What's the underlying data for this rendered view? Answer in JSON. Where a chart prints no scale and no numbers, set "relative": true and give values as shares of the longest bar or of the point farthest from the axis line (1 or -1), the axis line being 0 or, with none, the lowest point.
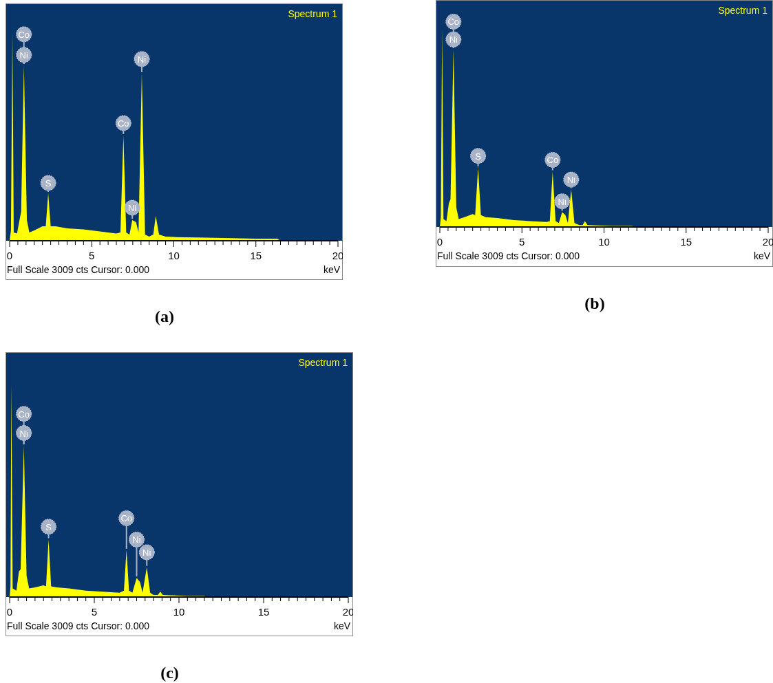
{
  "chart_data": [
    {
      "type": "area",
      "title": "Spectrum 1",
      "xlabel": "keV",
      "relative": true,
      "color": "#ffff00",
      "xlim": [
        0,
        20
      ],
      "xticks": [
        0,
        {
          "value": 0.5,
          "label": null
        },
        {
          "value": 1,
          "label": null
        },
        {
          "value": 1.5,
          "label": null
        },
        {
          "value": 2,
          "label": null
        },
        {
          "value": 2.5,
          "label": null
        },
        {
          "value": 3,
          "label": null
        },
        {
          "value": 3.5,
          "label": null
        },
        {
          "value": 4,
          "label": null
        },
        {
          "value": 4.5,
          "label": null
        },
        5,
        {
          "value": 5.5,
          "label": null
        },
        {
          "value": 6,
          "label": null
        },
        {
          "value": 6.5,
          "label": null
        },
        {
          "value": 7,
          "label": null
        },
        {
          "value": 7.5,
          "label": null
        },
        {
          "value": 8,
          "label": null
        },
        {
          "value": 8.5,
          "label": null
        },
        {
          "value": 9,
          "label": null
        },
        {
          "value": 9.5,
          "label": null
        },
        10,
        {
          "value": 10.5,
          "label": null
        },
        {
          "value": 11,
          "label": null
        },
        {
          "value": 11.5,
          "label": null
        },
        {
          "value": 12,
          "label": null
        },
        {
          "value": 12.5,
          "label": null
        },
        {
          "value": 13,
          "label": null
        },
        {
          "value": 13.5,
          "label": null
        },
        {
          "value": 14,
          "label": null
        },
        {
          "value": 14.5,
          "label": null
        },
        15,
        {
          "value": 15.5,
          "label": null
        },
        {
          "value": 16,
          "label": null
        },
        {
          "value": 16.5,
          "label": null
        },
        {
          "value": 17,
          "label": null
        },
        {
          "value": 17.5,
          "label": null
        },
        {
          "value": 18,
          "label": null
        },
        {
          "value": 18.5,
          "label": null
        },
        {
          "value": 19,
          "label": null
        },
        {
          "value": 19.5,
          "label": null
        },
        20
      ],
      "x": [
        0,
        0.08,
        0.17,
        0.25,
        0.45,
        0.6,
        0.7,
        0.87,
        1.05,
        1.2,
        1.5,
        2.0,
        2.2,
        2.35,
        2.5,
        2.8,
        3.5,
        4.5,
        5.5,
        6.5,
        6.75,
        6.93,
        7.1,
        7.3,
        7.47,
        7.7,
        7.85,
        8.05,
        8.25,
        8.5,
        8.75,
        8.9,
        9.1,
        9.5,
        10,
        12,
        14,
        15,
        16.3,
        16.5,
        20
      ],
      "values": [
        0,
        0.05,
        1,
        0.04,
        0.035,
        0.1,
        0.14,
        0.85,
        0.1,
        0.04,
        0.05,
        0.07,
        0.07,
        0.23,
        0.07,
        0.07,
        0.06,
        0.055,
        0.045,
        0.035,
        0.04,
        0.51,
        0.04,
        0.03,
        0.1,
        0.09,
        0.04,
        0.81,
        0.03,
        0.02,
        0.03,
        0.12,
        0.03,
        0.02,
        0.018,
        0.015,
        0.012,
        0.01,
        0.01,
        0,
        0
      ],
      "annotations": [
        "Full Scale 3009 cts Cursor: 0.000",
        "(a)",
        {
          "text": "Co",
          "x": 0.87,
          "y": 1.0
        },
        {
          "text": "Ni",
          "x": 0.87,
          "y": 0.9
        },
        {
          "text": "S",
          "x": 2.35,
          "y": 0.28
        },
        {
          "text": "Co",
          "x": 6.93,
          "y": 0.57
        },
        {
          "text": "Ni",
          "x": 7.47,
          "y": 0.16
        },
        {
          "text": "Ni",
          "x": 8.05,
          "y": 0.88
        }
      ]
    },
    {
      "type": "area",
      "title": "Spectrum 1",
      "xlabel": "keV",
      "relative": true,
      "color": "#ffff00",
      "xlim": [
        0,
        20
      ],
      "xticks": [
        0,
        {
          "value": 0.5,
          "label": null
        },
        {
          "value": 1,
          "label": null
        },
        {
          "value": 1.5,
          "label": null
        },
        {
          "value": 2,
          "label": null
        },
        {
          "value": 2.5,
          "label": null
        },
        {
          "value": 3,
          "label": null
        },
        {
          "value": 3.5,
          "label": null
        },
        {
          "value": 4,
          "label": null
        },
        {
          "value": 4.5,
          "label": null
        },
        5,
        {
          "value": 5.5,
          "label": null
        },
        {
          "value": 6,
          "label": null
        },
        {
          "value": 6.5,
          "label": null
        },
        {
          "value": 7,
          "label": null
        },
        {
          "value": 7.5,
          "label": null
        },
        {
          "value": 8,
          "label": null
        },
        {
          "value": 8.5,
          "label": null
        },
        {
          "value": 9,
          "label": null
        },
        {
          "value": 9.5,
          "label": null
        },
        10,
        {
          "value": 10.5,
          "label": null
        },
        {
          "value": 11,
          "label": null
        },
        {
          "value": 11.5,
          "label": null
        },
        {
          "value": 12,
          "label": null
        },
        {
          "value": 12.5,
          "label": null
        },
        {
          "value": 13,
          "label": null
        },
        {
          "value": 13.5,
          "label": null
        },
        {
          "value": 14,
          "label": null
        },
        {
          "value": 14.5,
          "label": null
        },
        15,
        {
          "value": 15.5,
          "label": null
        },
        {
          "value": 16,
          "label": null
        },
        {
          "value": 16.5,
          "label": null
        },
        {
          "value": 17,
          "label": null
        },
        {
          "value": 17.5,
          "label": null
        },
        {
          "value": 18,
          "label": null
        },
        {
          "value": 18.5,
          "label": null
        },
        {
          "value": 19,
          "label": null
        },
        {
          "value": 19.5,
          "label": null
        },
        20
      ],
      "x": [
        0,
        0.06,
        0.14,
        0.22,
        0.4,
        0.55,
        0.65,
        0.83,
        1.0,
        1.15,
        1.5,
        2.0,
        2.15,
        2.33,
        2.5,
        2.8,
        3.5,
        4.5,
        5.5,
        6.5,
        6.7,
        6.87,
        7.05,
        7.25,
        7.45,
        7.65,
        7.8,
        8.0,
        8.2,
        8.5,
        8.7,
        8.83,
        9.0,
        9.5,
        10.5,
        11.7,
        11.9,
        20
      ],
      "values": [
        0,
        0.05,
        1,
        0.04,
        0.03,
        0.12,
        0.14,
        0.9,
        0.1,
        0.04,
        0.05,
        0.065,
        0.06,
        0.3,
        0.06,
        0.05,
        0.045,
        0.035,
        0.03,
        0.025,
        0.03,
        0.28,
        0.03,
        0.02,
        0.075,
        0.06,
        0.02,
        0.19,
        0.02,
        0.01,
        0.01,
        0.03,
        0.01,
        0.008,
        0.005,
        0.005,
        0,
        0
      ],
      "annotations": [
        "Full Scale 3009 cts Cursor: 0.000",
        "(b)",
        {
          "text": "Co",
          "x": 0.83,
          "y": 1.04
        },
        {
          "text": "Ni",
          "x": 0.83,
          "y": 0.95
        },
        {
          "text": "S",
          "x": 2.33,
          "y": 0.36
        },
        {
          "text": "Co",
          "x": 6.87,
          "y": 0.34
        },
        {
          "text": "Ni",
          "x": 7.45,
          "y": 0.13
        },
        {
          "text": "Ni",
          "x": 8.0,
          "y": 0.24
        }
      ]
    },
    {
      "type": "area",
      "title": "Spectrum 1",
      "xlabel": "keV",
      "relative": true,
      "color": "#ffff00",
      "xlim": [
        0,
        20
      ],
      "xticks": [
        0,
        {
          "value": 0.5,
          "label": null
        },
        {
          "value": 1,
          "label": null
        },
        {
          "value": 1.5,
          "label": null
        },
        {
          "value": 2,
          "label": null
        },
        {
          "value": 2.5,
          "label": null
        },
        {
          "value": 3,
          "label": null
        },
        {
          "value": 3.5,
          "label": null
        },
        {
          "value": 4,
          "label": null
        },
        {
          "value": 4.5,
          "label": null
        },
        5,
        {
          "value": 5.5,
          "label": null
        },
        {
          "value": 6,
          "label": null
        },
        {
          "value": 6.5,
          "label": null
        },
        {
          "value": 7,
          "label": null
        },
        {
          "value": 7.5,
          "label": null
        },
        {
          "value": 8,
          "label": null
        },
        {
          "value": 8.5,
          "label": null
        },
        {
          "value": 9,
          "label": null
        },
        {
          "value": 9.5,
          "label": null
        },
        10,
        {
          "value": 10.5,
          "label": null
        },
        {
          "value": 11,
          "label": null
        },
        {
          "value": 11.5,
          "label": null
        },
        {
          "value": 12,
          "label": null
        },
        {
          "value": 12.5,
          "label": null
        },
        {
          "value": 13,
          "label": null
        },
        {
          "value": 13.5,
          "label": null
        },
        {
          "value": 14,
          "label": null
        },
        {
          "value": 14.5,
          "label": null
        },
        15,
        {
          "value": 15.5,
          "label": null
        },
        {
          "value": 16,
          "label": null
        },
        {
          "value": 16.5,
          "label": null
        },
        {
          "value": 17,
          "label": null
        },
        {
          "value": 17.5,
          "label": null
        },
        {
          "value": 18,
          "label": null
        },
        {
          "value": 18.5,
          "label": null
        },
        {
          "value": 19,
          "label": null
        },
        {
          "value": 19.5,
          "label": null
        },
        20
      ],
      "x": [
        0,
        0.05,
        0.1,
        0.18,
        0.4,
        0.55,
        0.65,
        0.84,
        1.0,
        1.15,
        1.5,
        2.0,
        2.15,
        2.3,
        2.45,
        2.8,
        3.5,
        4.5,
        5.5,
        6.5,
        6.75,
        6.9,
        7.05,
        7.25,
        7.5,
        7.7,
        7.85,
        8.1,
        8.3,
        8.5,
        8.75,
        8.9,
        9.05,
        9.5,
        10.5,
        11.5,
        11.7,
        20
      ],
      "values": [
        0,
        0.05,
        1,
        0.04,
        0.03,
        0.12,
        0.13,
        0.71,
        0.1,
        0.04,
        0.045,
        0.055,
        0.05,
        0.27,
        0.05,
        0.045,
        0.04,
        0.03,
        0.025,
        0.02,
        0.03,
        0.22,
        0.03,
        0.02,
        0.09,
        0.07,
        0.02,
        0.14,
        0.02,
        0.01,
        0.01,
        0.025,
        0.01,
        0.008,
        0.005,
        0.005,
        0,
        0
      ],
      "annotations": [
        "Full Scale 3009 cts Cursor: 0.000",
        "(c)",
        {
          "text": "Co",
          "x": 0.84,
          "y": 0.86
        },
        {
          "text": "Ni",
          "x": 0.84,
          "y": 0.77
        },
        {
          "text": "S",
          "x": 2.3,
          "y": 0.33
        },
        {
          "text": "Co",
          "x": 6.9,
          "y": 0.37
        },
        {
          "text": "Ni",
          "x": 7.5,
          "y": 0.27
        },
        {
          "text": "Ni",
          "x": 8.1,
          "y": 0.21
        }
      ]
    }
  ]
}
